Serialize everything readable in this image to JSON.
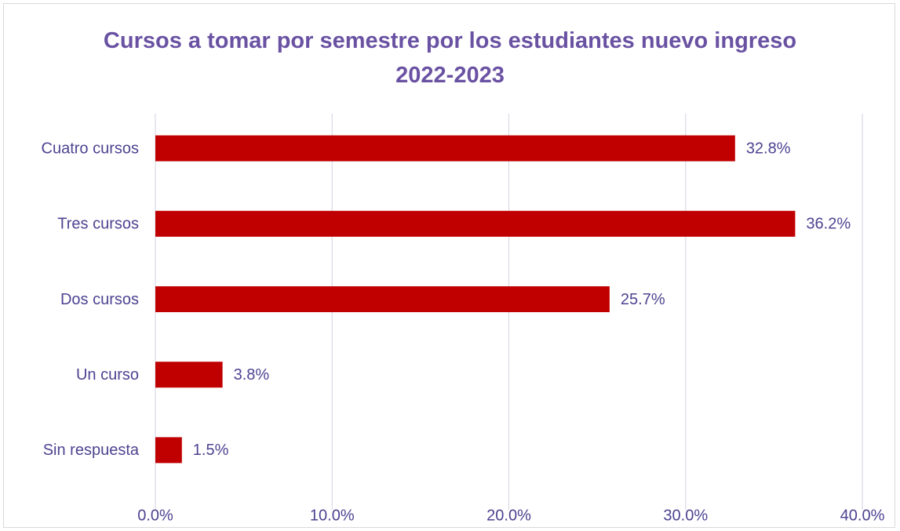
{
  "chart_data": {
    "type": "hbar",
    "title": "Cursos a tomar por semestre por los estudiantes nuevo ingreso 2022-2023",
    "categories": [
      "Cuatro cursos",
      "Tres cursos",
      "Dos cursos",
      "Un curso",
      "Sin respuesta"
    ],
    "values": [
      32.8,
      36.2,
      25.7,
      3.8,
      1.5
    ],
    "value_labels": [
      "32.8%",
      "36.2%",
      "25.7%",
      "3.8%",
      "1.5%"
    ],
    "color": "#c00000",
    "xlim": [
      0,
      40
    ],
    "xticks": [
      {
        "value": 0,
        "label": "0.0%"
      },
      {
        "value": 10,
        "label": "10.0%"
      },
      {
        "value": 20,
        "label": "20.0%"
      },
      {
        "value": 30,
        "label": "30.0%"
      },
      {
        "value": 40,
        "label": "40.0%"
      }
    ],
    "grid": true
  }
}
